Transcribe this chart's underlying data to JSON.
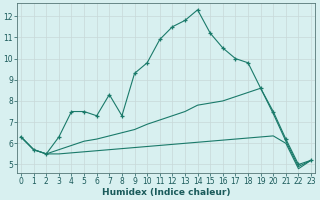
{
  "xlabel": "Humidex (Indice chaleur)",
  "bg_color": "#d8f0f0",
  "line_color": "#1a7a6a",
  "grid_color_major": "#c8d8d8",
  "grid_color_minor": "#e0ecec",
  "x_ticks": [
    0,
    1,
    2,
    3,
    4,
    5,
    6,
    7,
    8,
    9,
    10,
    11,
    12,
    13,
    14,
    15,
    16,
    17,
    18,
    19,
    20,
    21,
    22,
    23
  ],
  "y_ticks": [
    5,
    6,
    7,
    8,
    9,
    10,
    11,
    12
  ],
  "xlim": [
    -0.3,
    23.3
  ],
  "ylim": [
    4.6,
    12.6
  ],
  "line1_x": [
    0,
    1,
    2,
    3,
    4,
    5,
    6,
    7,
    8,
    9,
    10,
    11,
    12,
    13,
    14,
    15,
    16,
    17,
    18,
    19,
    20,
    21,
    22,
    23
  ],
  "line1_y": [
    6.3,
    5.7,
    5.5,
    6.3,
    7.5,
    7.5,
    7.3,
    8.3,
    7.3,
    9.3,
    9.8,
    10.9,
    11.5,
    11.8,
    12.3,
    11.2,
    10.5,
    10.0,
    9.8,
    8.6,
    7.5,
    6.2,
    5.0,
    5.2
  ],
  "line2_x": [
    0,
    1,
    2,
    3,
    4,
    5,
    6,
    7,
    8,
    9,
    10,
    11,
    12,
    13,
    14,
    15,
    16,
    17,
    18,
    19,
    20,
    21,
    22,
    23
  ],
  "line2_y": [
    6.3,
    5.7,
    5.5,
    5.7,
    5.9,
    6.1,
    6.2,
    6.35,
    6.5,
    6.65,
    6.9,
    7.1,
    7.3,
    7.5,
    7.8,
    7.9,
    8.0,
    8.2,
    8.4,
    8.6,
    7.4,
    6.1,
    4.9,
    5.2
  ],
  "line3_x": [
    0,
    1,
    2,
    3,
    4,
    5,
    6,
    7,
    8,
    9,
    10,
    11,
    12,
    13,
    14,
    15,
    16,
    17,
    18,
    19,
    20,
    21,
    22,
    23
  ],
  "line3_y": [
    6.3,
    5.7,
    5.5,
    5.5,
    5.55,
    5.6,
    5.65,
    5.7,
    5.75,
    5.8,
    5.85,
    5.9,
    5.95,
    6.0,
    6.05,
    6.1,
    6.15,
    6.2,
    6.25,
    6.3,
    6.35,
    6.0,
    4.8,
    5.2
  ],
  "tick_fontsize": 5.5,
  "xlabel_fontsize": 6.5
}
